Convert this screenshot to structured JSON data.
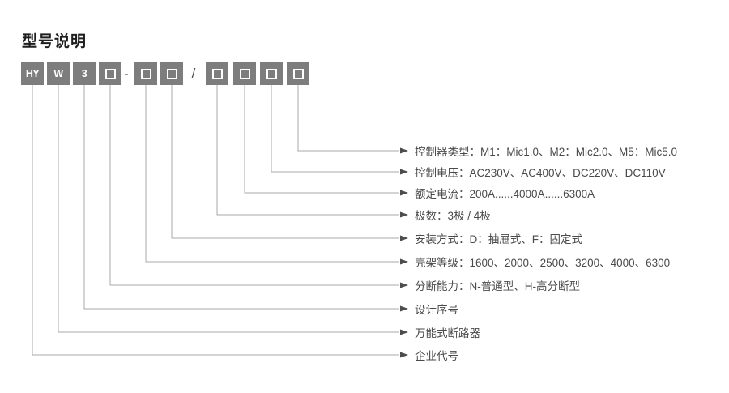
{
  "title": "型号说明",
  "model_code": {
    "parts": [
      {
        "kind": "code",
        "text": "HY"
      },
      {
        "kind": "code",
        "text": "W"
      },
      {
        "kind": "code",
        "text": "3"
      },
      {
        "kind": "slot"
      },
      {
        "kind": "sep",
        "text": "-"
      },
      {
        "kind": "slot"
      },
      {
        "kind": "slot"
      },
      {
        "kind": "sep",
        "text": "/"
      },
      {
        "kind": "slot"
      },
      {
        "kind": "slot"
      },
      {
        "kind": "slot"
      },
      {
        "kind": "slot"
      }
    ]
  },
  "legend": [
    {
      "text": "控制器类型：M1：Mic1.0、M2：Mic2.0、M5：Mic5.0"
    },
    {
      "text": "控制电压：AC230V、AC400V、DC220V、DC110V"
    },
    {
      "text": "额定电流：200A......4000A......6300A"
    },
    {
      "text": "极数：3极 / 4极"
    },
    {
      "text": "安装方式：D：抽屉式、F：固定式"
    },
    {
      "text": "壳架等级：1600、2000、2500、3200、4000、6300"
    },
    {
      "text": "分断能力：N-普通型、H-高分断型"
    },
    {
      "text": "设计序号"
    },
    {
      "text": "万能式断路器"
    },
    {
      "text": "企业代号"
    }
  ],
  "colors": {
    "box_fill": "#7d7d7d",
    "box_text": "#ffffff",
    "line": "#a8a8a8",
    "arrow": "#4d4d4d",
    "label_text": "#4a4a4a",
    "title_text": "#1f1f1f"
  }
}
